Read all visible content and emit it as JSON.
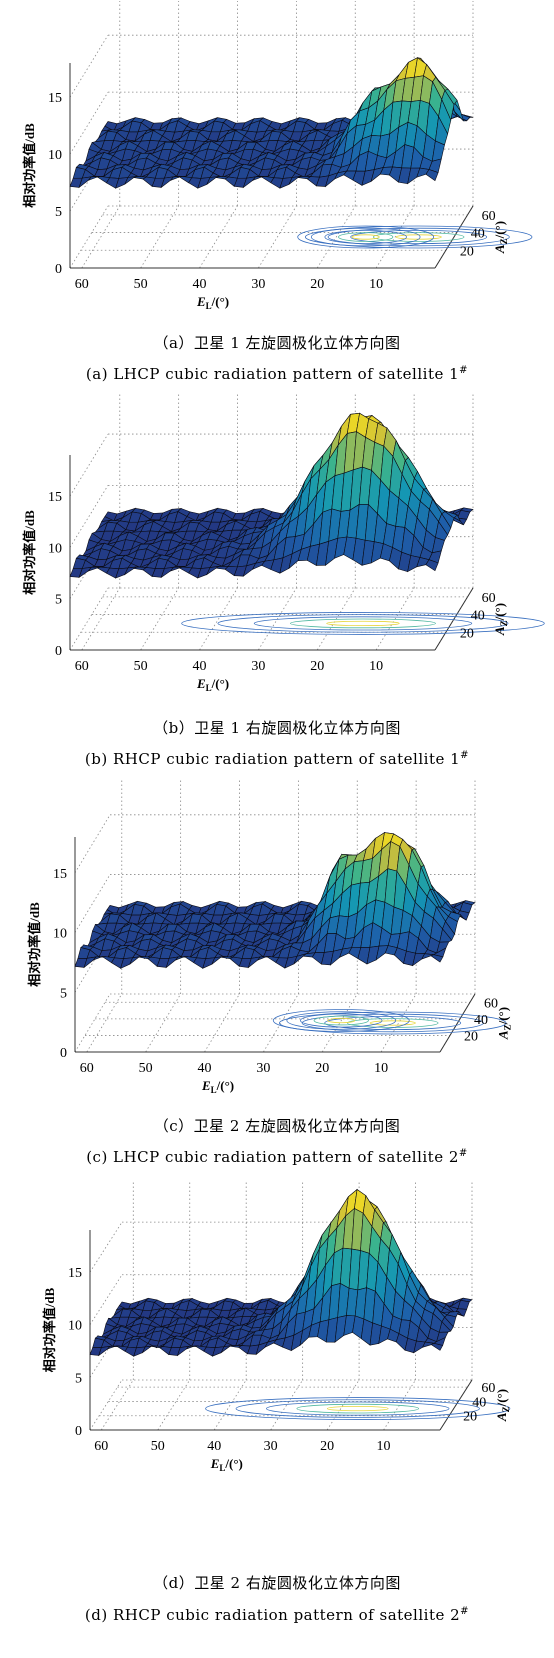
{
  "chart_data": [
    {
      "type": "surface3d",
      "caption_cn": "（a）卫星 1 左旋圆极化立体方向图",
      "caption_en": "(a) LHCP cubic radiation pattern of satellite 1",
      "caption_sup": "#",
      "zlabel": "相对功率值/dB",
      "xlabel": "E",
      "xlabel_sub": "L",
      "xlabel_unit": "/(°)",
      "ylabel": "A",
      "ylabel_sub": "Z",
      "ylabel_unit": "/(°)",
      "x_ticks": [
        "60",
        "50",
        "40",
        "30",
        "20",
        "10"
      ],
      "y_ticks": [
        "20",
        "40",
        "60"
      ],
      "z_ticks": [
        "0",
        "5",
        "10",
        "15"
      ],
      "xlim": [
        0,
        62
      ],
      "ylim": [
        0,
        70
      ],
      "zlim": [
        0,
        18
      ],
      "base_level": 7.5,
      "peaks": [
        {
          "el": 6,
          "az": 35,
          "height": 15.5,
          "width": 5
        },
        {
          "el": 15,
          "az": 35,
          "height": 10.5,
          "width": 3
        }
      ]
    },
    {
      "type": "surface3d",
      "caption_cn": "（b）卫星 1 右旋圆极化立体方向图",
      "caption_en": "(b) RHCP cubic radiation pattern of satellite 1",
      "caption_sup": "#",
      "zlabel": "相对功率值/dB",
      "xlabel": "E",
      "xlabel_sub": "L",
      "xlabel_unit": "/(°)",
      "ylabel": "A",
      "ylabel_sub": "Z",
      "ylabel_unit": "/(°)",
      "x_ticks": [
        "60",
        "50",
        "40",
        "30",
        "20",
        "10"
      ],
      "y_ticks": [
        "20",
        "40",
        "60"
      ],
      "z_ticks": [
        "0",
        "5",
        "10",
        "15"
      ],
      "xlim": [
        0,
        62
      ],
      "ylim": [
        0,
        70
      ],
      "zlim": [
        0,
        19
      ],
      "base_level": 7.5,
      "peaks": [
        {
          "el": 15,
          "az": 30,
          "height": 20.5,
          "width": 8
        }
      ]
    },
    {
      "type": "surface3d",
      "caption_cn": "（c）卫星 2 左旋圆极化立体方向图",
      "caption_en": "(c) LHCP cubic radiation pattern of satellite 2",
      "caption_sup": "#",
      "zlabel": "相对功率值/dB",
      "xlabel": "E",
      "xlabel_sub": "L",
      "xlabel_unit": "/(°)",
      "ylabel": "A",
      "ylabel_sub": "Z",
      "ylabel_unit": "/(°)",
      "x_ticks": [
        "60",
        "50",
        "40",
        "30",
        "20",
        "10"
      ],
      "y_ticks": [
        "20",
        "40",
        "60"
      ],
      "z_ticks": [
        "0",
        "5",
        "10",
        "15"
      ],
      "xlim": [
        0,
        62
      ],
      "ylim": [
        0,
        70
      ],
      "zlim": [
        0,
        18
      ],
      "base_level": 7.5,
      "peaks": [
        {
          "el": 11,
          "az": 35,
          "height": 16,
          "width": 5
        },
        {
          "el": 20,
          "az": 38,
          "height": 12,
          "width": 3
        }
      ]
    },
    {
      "type": "surface3d",
      "caption_cn": "（d）卫星 2 右旋圆极化立体方向图",
      "caption_en": "(d) RHCP cubic radiation pattern of satellite 2",
      "caption_sup": "#",
      "zlabel": "相对功率值/dB",
      "xlabel": "E",
      "xlabel_sub": "L",
      "xlabel_unit": "/(°)",
      "ylabel": "A",
      "ylabel_sub": "Z",
      "ylabel_unit": "/(°)",
      "x_ticks": [
        "60",
        "50",
        "40",
        "30",
        "20",
        "10"
      ],
      "y_ticks": [
        "20",
        "40",
        "60"
      ],
      "z_ticks": [
        "0",
        "5",
        "10",
        "15"
      ],
      "xlim": [
        0,
        62
      ],
      "ylim": [
        0,
        70
      ],
      "zlim": [
        0,
        19
      ],
      "base_level": 7.5,
      "peaks": [
        {
          "el": 17,
          "az": 30,
          "height": 20.5,
          "width": 7
        }
      ]
    }
  ]
}
